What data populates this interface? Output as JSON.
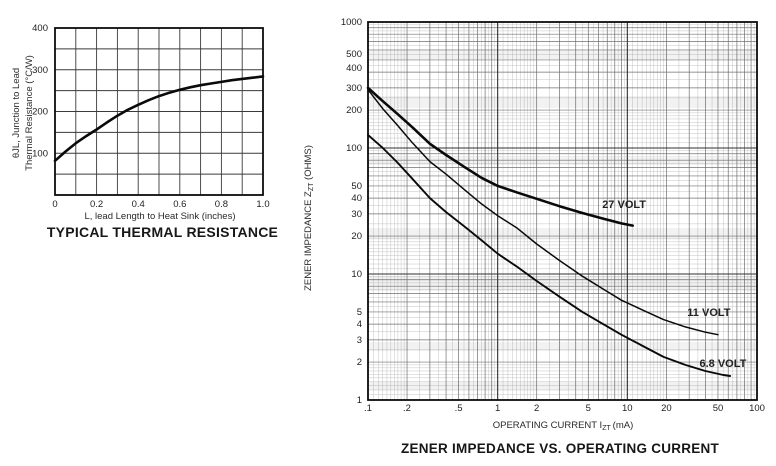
{
  "page": {
    "background": "#ffffff",
    "ink": "#111111"
  },
  "chart_data": [
    {
      "id": "thermal",
      "type": "line",
      "title": "TYPICAL THERMAL RESISTANCE",
      "xlabel": "L, lead Length to Heat Sink (inches)",
      "ylabel_line1": "θJL, Junction to Lead",
      "ylabel_line2": "Thermal Resistance (°C/W)",
      "xscale": "linear",
      "yscale": "linear",
      "xlim": [
        0,
        1.0
      ],
      "ylim": [
        0,
        400
      ],
      "x_grid_step": 0.1,
      "y_grid_step": 50,
      "grid": true,
      "legend": "none",
      "x_ticks": [
        0,
        0.2,
        0.4,
        0.6,
        0.8,
        1.0
      ],
      "x_tick_labels": [
        "0",
        "0.2",
        "0.4",
        "0.6",
        "0.8",
        "1.0"
      ],
      "y_ticks": [
        100,
        200,
        300,
        400
      ],
      "series": [
        {
          "name": "thermal-resistance-curve",
          "label": "",
          "stroke_width": 2.6,
          "x": [
            0,
            0.05,
            0.1,
            0.15,
            0.2,
            0.25,
            0.3,
            0.35,
            0.4,
            0.45,
            0.5,
            0.55,
            0.6,
            0.65,
            0.7,
            0.75,
            0.8,
            0.85,
            0.9,
            0.95,
            1.0
          ],
          "y": [
            82,
            104,
            124,
            141,
            157,
            174,
            190,
            204,
            216,
            227,
            237,
            245,
            252,
            258,
            263,
            267,
            271,
            275,
            278,
            281,
            284
          ]
        }
      ]
    },
    {
      "id": "zener",
      "type": "line",
      "title": "ZENER IMPEDANCE VS. OPERATING CURRENT",
      "xlabel_parts": {
        "pre": "OPERATING CURRENT I",
        "sub": "ZT",
        "post": " (mA)"
      },
      "ylabel_parts": {
        "pre": "ZENER IMPEDANCE Z",
        "sub": "ZT",
        "post": " (OHMS)"
      },
      "xscale": "log",
      "yscale": "log",
      "xlim": [
        0.1,
        100
      ],
      "ylim": [
        1,
        1000
      ],
      "grid": true,
      "legend": "inline-labels",
      "x_ticks": [
        0.1,
        0.2,
        0.5,
        1,
        2,
        5,
        10,
        20,
        50,
        100
      ],
      "x_tick_labels": [
        ".1",
        ".2",
        ".5",
        "1",
        "2",
        "5",
        "10",
        "20",
        "50",
        "100"
      ],
      "y_ticks": [
        1,
        2,
        3,
        4,
        5,
        10,
        20,
        30,
        40,
        50,
        100,
        200,
        300,
        400,
        500,
        1000
      ],
      "series": [
        {
          "name": "27-volt-curve",
          "label": "27 VOLT",
          "label_at": [
            6.4,
            33.5
          ],
          "stroke_width": 2.6,
          "x": [
            0.1,
            0.13,
            0.17,
            0.22,
            0.3,
            0.4,
            0.55,
            0.75,
            1,
            1.4,
            2,
            3,
            4.5,
            6.5,
            9,
            11
          ],
          "y": [
            300,
            235,
            185,
            146,
            108,
            88,
            71,
            58,
            50,
            44.5,
            39.5,
            34.5,
            30.5,
            27.5,
            25.2,
            24.2
          ]
        },
        {
          "name": "11-volt-curve",
          "label": "11 VOLT",
          "label_at": [
            29,
            4.65
          ],
          "stroke_width": 1.5,
          "x": [
            0.1,
            0.13,
            0.17,
            0.22,
            0.3,
            0.4,
            0.55,
            0.75,
            1,
            1.4,
            2,
            3,
            4.5,
            6.5,
            9,
            13,
            19,
            28,
            40,
            50
          ],
          "y": [
            290,
            205,
            150,
            110,
            78,
            62,
            47,
            36,
            29,
            23.3,
            17.3,
            12.8,
            9.6,
            7.6,
            6.2,
            5.2,
            4.35,
            3.8,
            3.45,
            3.3
          ]
        },
        {
          "name": "6.8-volt-curve",
          "label": "6.8 VOLT",
          "label_at": [
            36,
            1.83
          ],
          "stroke_width": 1.9,
          "x": [
            0.1,
            0.13,
            0.17,
            0.22,
            0.3,
            0.4,
            0.55,
            0.75,
            1,
            1.4,
            2,
            3,
            4.5,
            6.5,
            9,
            13,
            19,
            28,
            40,
            55,
            62
          ],
          "y": [
            127,
            100,
            76,
            57,
            40,
            31,
            24,
            18.5,
            14.5,
            11.5,
            8.8,
            6.6,
            5,
            4,
            3.3,
            2.7,
            2.2,
            1.9,
            1.7,
            1.58,
            1.55
          ]
        }
      ]
    }
  ]
}
